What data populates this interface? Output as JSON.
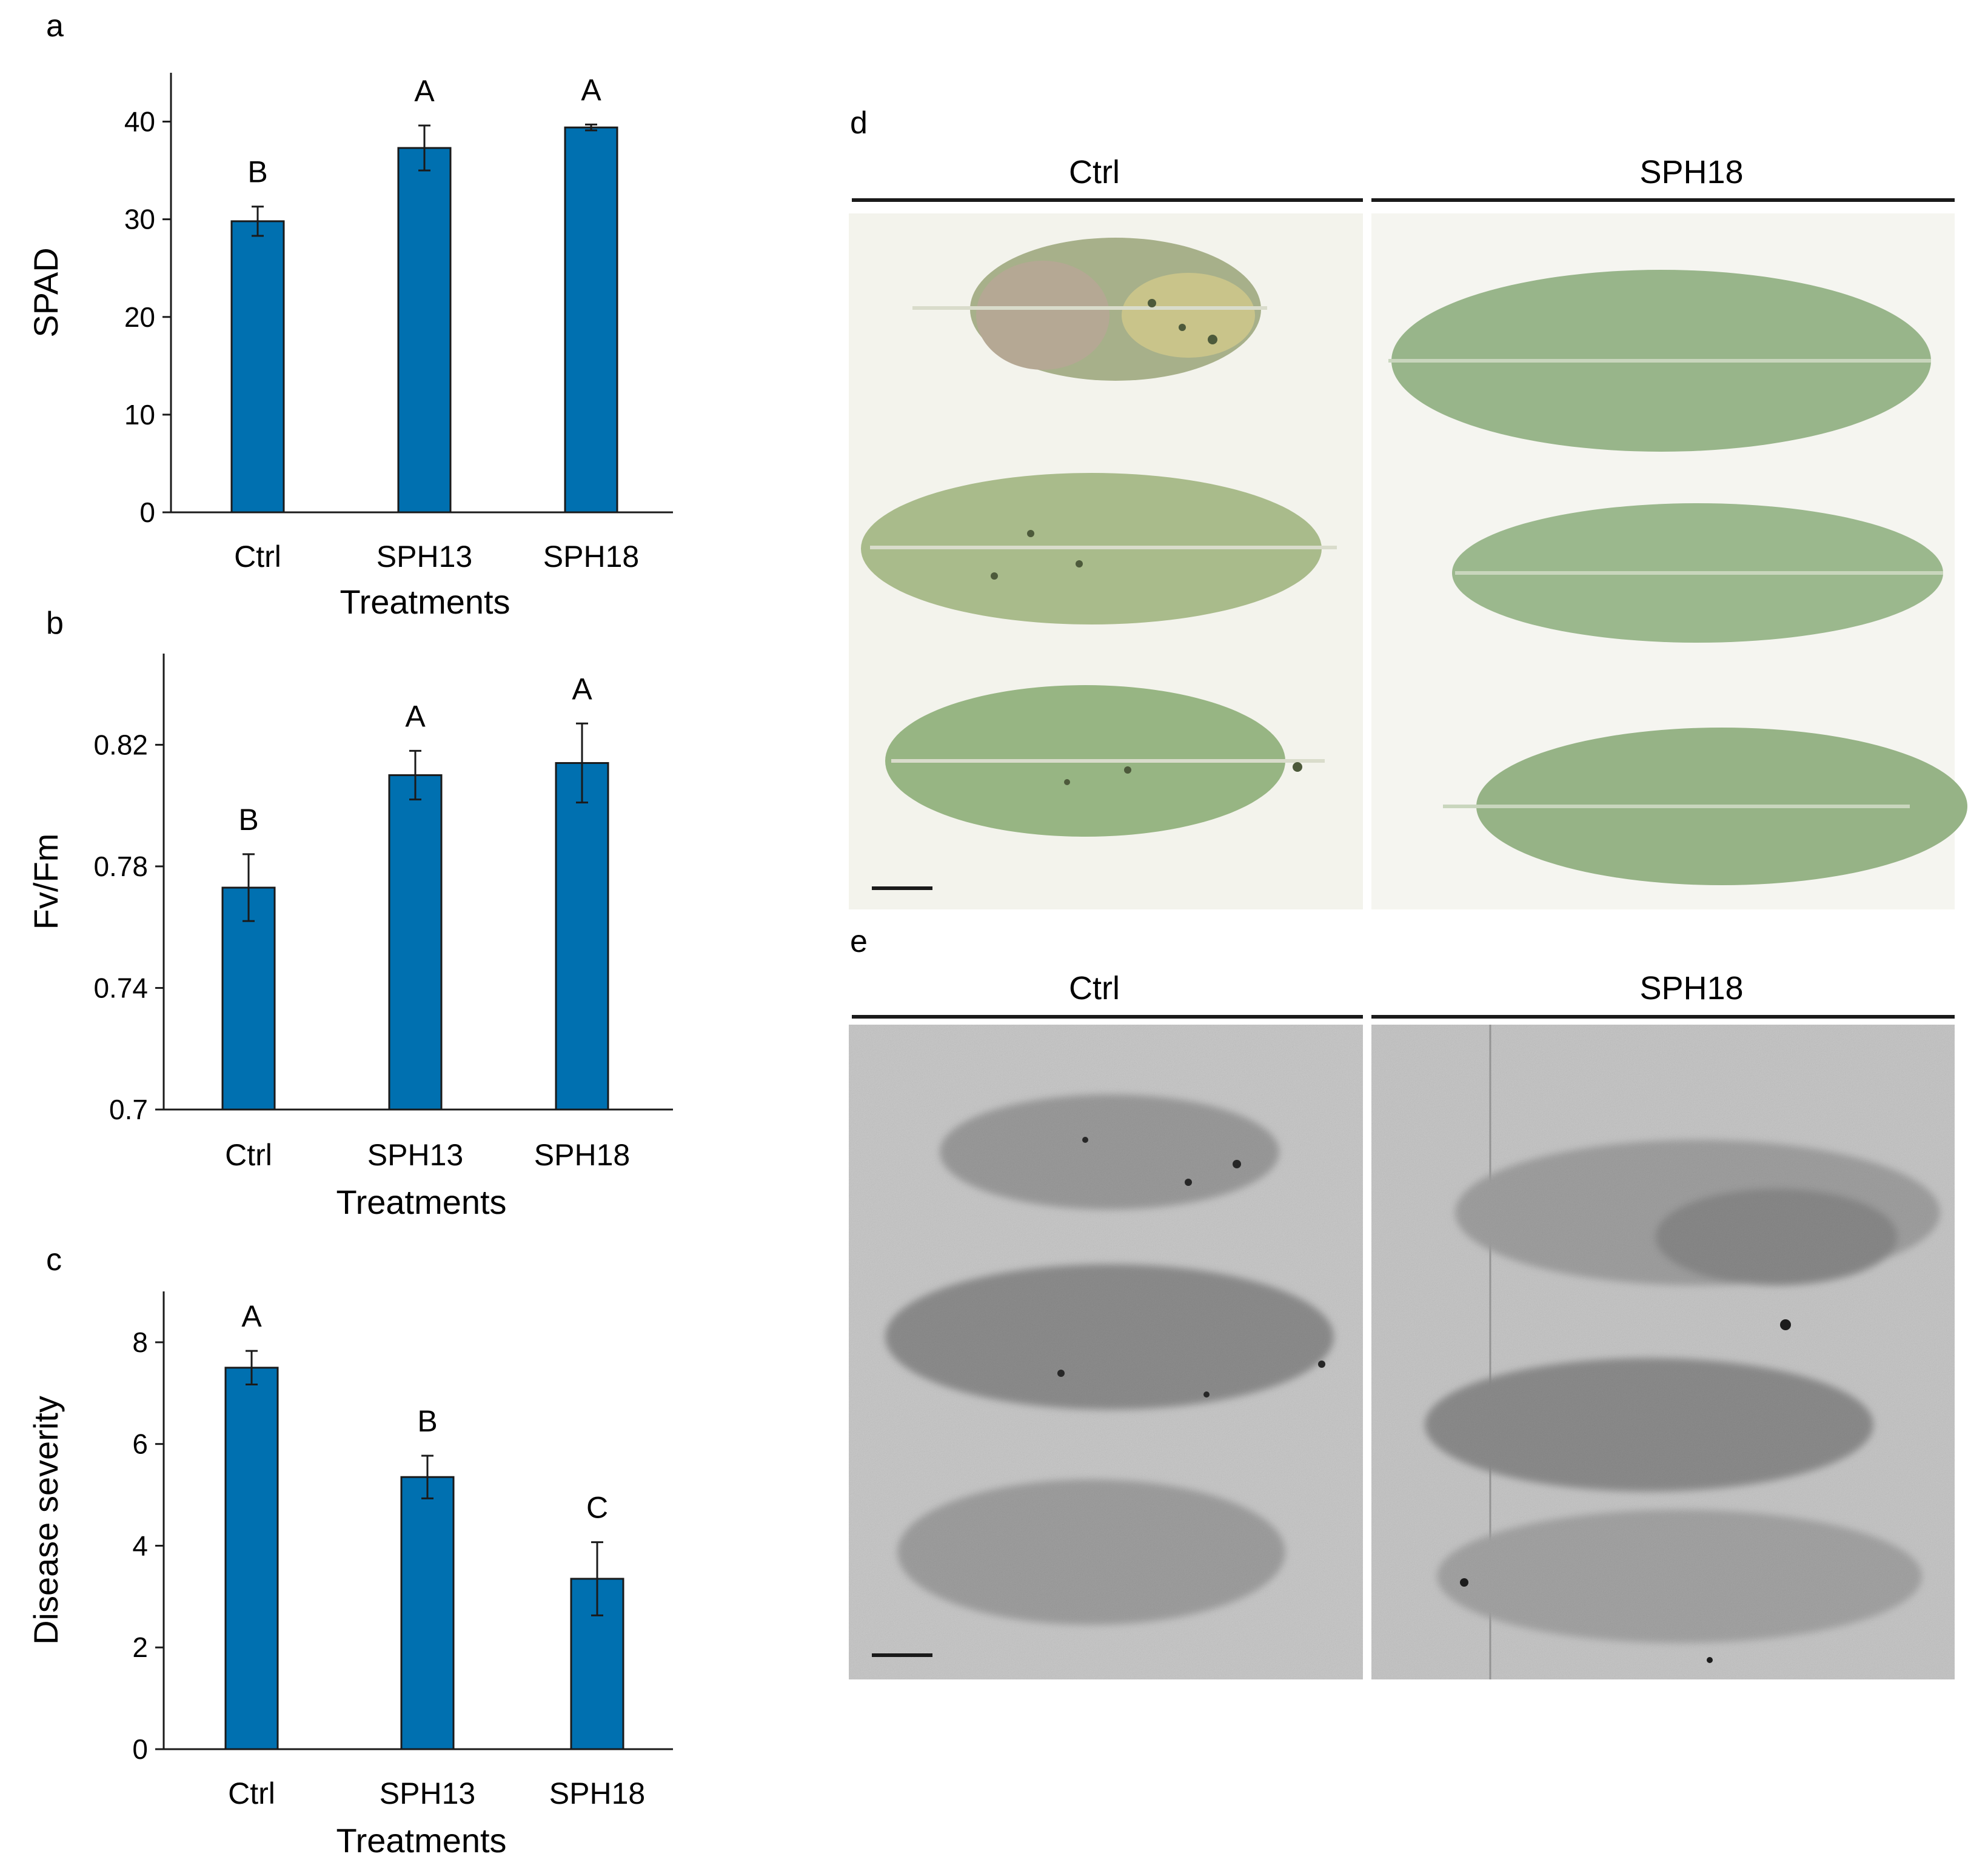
{
  "chart_data": [
    {
      "panel": "a",
      "type": "bar",
      "categories": [
        "Ctrl",
        "SPH13",
        "SPH18"
      ],
      "values": [
        29.8,
        37.3,
        39.4
      ],
      "errors": [
        1.5,
        2.3,
        0.3
      ],
      "significance": [
        "B",
        "A",
        "A"
      ],
      "xlabel": "Treatments",
      "ylabel": "SPAD",
      "ylim": [
        0,
        45
      ],
      "yticks": [
        "0",
        "10",
        "20",
        "30",
        "40"
      ],
      "ytick_values": [
        0,
        10,
        20,
        30,
        40
      ],
      "bar_color": "#0070b0",
      "grid": false
    },
    {
      "panel": "b",
      "type": "bar",
      "categories": [
        "Ctrl",
        "SPH13",
        "SPH18"
      ],
      "values": [
        0.773,
        0.81,
        0.814
      ],
      "errors": [
        0.011,
        0.008,
        0.013
      ],
      "significance": [
        "B",
        "A",
        "A"
      ],
      "xlabel": "Treatments",
      "ylabel": "Fv/Fm",
      "ylim": [
        0.7,
        0.85
      ],
      "yticks": [
        "0.7",
        "0.74",
        "0.78",
        "0.82"
      ],
      "ytick_values": [
        0.7,
        0.74,
        0.78,
        0.82
      ],
      "bar_color": "#0070b0",
      "grid": false
    },
    {
      "panel": "c",
      "type": "bar",
      "categories": [
        "Ctrl",
        "SPH13",
        "SPH18"
      ],
      "values": [
        7.5,
        5.35,
        3.35
      ],
      "errors": [
        0.33,
        0.42,
        0.72
      ],
      "significance": [
        "A",
        "B",
        "C"
      ],
      "xlabel": "Treatments",
      "ylabel": "Disease severity",
      "ylim": [
        0,
        9
      ],
      "yticks": [
        "0",
        "2",
        "4",
        "6",
        "8"
      ],
      "ytick_values": [
        0,
        2,
        4,
        6,
        8
      ],
      "bar_color": "#0070b0",
      "grid": false
    }
  ],
  "photo_panels": [
    {
      "letter": "d",
      "left_label": "Ctrl",
      "right_label": "SPH18",
      "kind": "leaf-scan"
    },
    {
      "letter": "e",
      "left_label": "Ctrl",
      "right_label": "SPH18",
      "kind": "grayscale-image"
    }
  ],
  "colors": {
    "bar": "#0070b0",
    "leaf": "#8fae84",
    "paper": "#f4f4ee",
    "gray_bg": "#c9c9c9",
    "gray_leaf": "#8d8d8d"
  }
}
